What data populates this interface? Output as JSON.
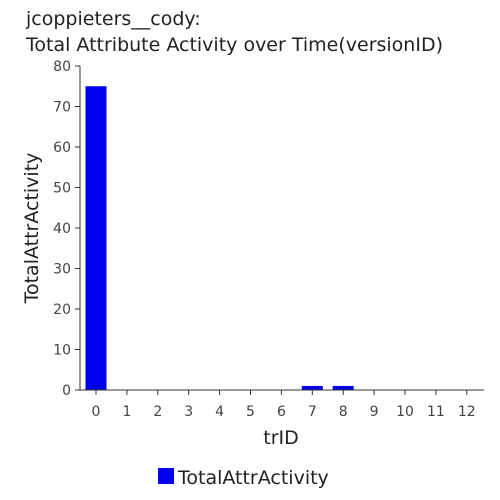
{
  "chart_data": {
    "type": "bar",
    "title_lines": [
      "jcoppieters__cody:",
      "Total Attribute Activity over Time(versionID)"
    ],
    "xlabel": "trID",
    "ylabel": "TotalAttrActivity",
    "categories": [
      "0",
      "1",
      "2",
      "3",
      "4",
      "5",
      "6",
      "7",
      "8",
      "9",
      "10",
      "11",
      "12"
    ],
    "series": [
      {
        "name": "TotalAttrActivity",
        "color": "#0000ee",
        "values": [
          75,
          0,
          0,
          0,
          0,
          0,
          0,
          1,
          1,
          0,
          0,
          0,
          0
        ]
      }
    ],
    "ylim": [
      0,
      80
    ],
    "yticks": [
      0,
      10,
      20,
      30,
      40,
      50,
      60,
      70,
      80
    ],
    "grid": false,
    "legend": "bottom-center"
  }
}
